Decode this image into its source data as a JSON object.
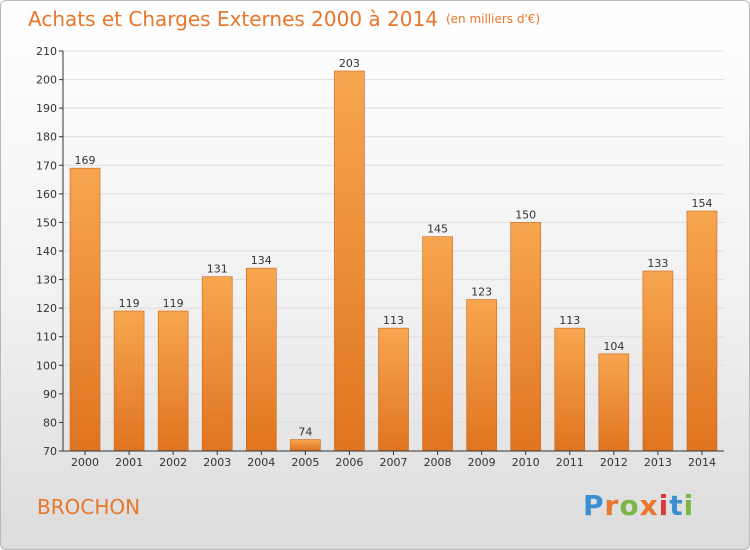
{
  "title": "Achats et Charges Externes 2000 à 2014",
  "unit": "(en milliers d'€)",
  "commune": "BROCHON",
  "brand": "Proxiti",
  "colors": {
    "accent": "#e8762b",
    "bar_light": "#f7a64f",
    "bar_dark": "#e07420",
    "bar_edge": "#c9651e",
    "axis": "#333333",
    "grid": "#dddddd"
  },
  "chart_data": {
    "type": "bar",
    "title": "Achats et Charges Externes 2000 à 2014",
    "subtitle": "(en milliers d'€)",
    "categories": [
      "2000",
      "2001",
      "2002",
      "2003",
      "2004",
      "2005",
      "2006",
      "2007",
      "2008",
      "2009",
      "2010",
      "2011",
      "2012",
      "2013",
      "2014"
    ],
    "values": [
      169,
      119,
      119,
      131,
      134,
      74,
      203,
      113,
      145,
      123,
      150,
      113,
      104,
      133,
      154
    ],
    "ylim": [
      70,
      210
    ],
    "yticks": [
      70,
      80,
      90,
      100,
      110,
      120,
      130,
      140,
      150,
      160,
      170,
      180,
      190,
      200,
      210
    ],
    "grid": true,
    "legend": "none",
    "data_labels": true
  }
}
